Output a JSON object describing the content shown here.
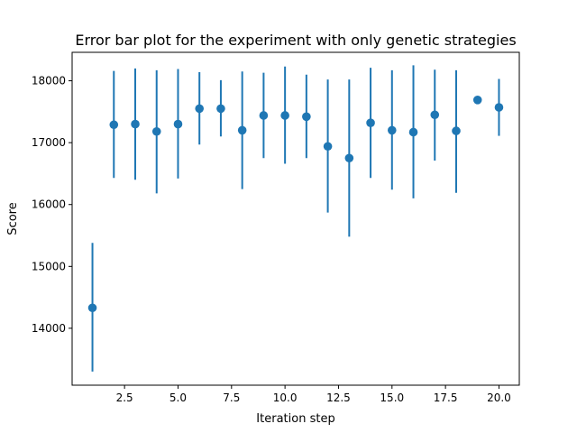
{
  "chart_data": {
    "type": "scatter",
    "title": "Error bar plot for the experiment with only genetic strategies",
    "xlabel": "Iteration step",
    "ylabel": "Score",
    "xlim": [
      0.05,
      20.95
    ],
    "ylim": [
      13080,
      18460
    ],
    "xticks": [
      2.5,
      5.0,
      7.5,
      10.0,
      12.5,
      15.0,
      17.5,
      20.0
    ],
    "xtick_labels": [
      "2.5",
      "5.0",
      "7.5",
      "10.0",
      "12.5",
      "15.0",
      "17.5",
      "20.0"
    ],
    "yticks": [
      14000,
      15000,
      16000,
      17000,
      18000
    ],
    "ytick_labels": [
      "14000",
      "15000",
      "16000",
      "17000",
      "18000"
    ],
    "grid": false,
    "color": "#1f77b4",
    "series": [
      {
        "x": [
          1,
          2,
          3,
          4,
          5,
          6,
          7,
          8,
          9,
          10,
          11,
          12,
          13,
          14,
          15,
          16,
          17,
          18,
          19,
          20
        ],
        "y": [
          14330,
          17290,
          17300,
          17180,
          17300,
          17550,
          17550,
          17200,
          17440,
          17440,
          17420,
          16940,
          16750,
          17320,
          17200,
          17170,
          17450,
          17190,
          17690,
          17570
        ],
        "yerr_low": [
          13300,
          16430,
          16400,
          16180,
          16420,
          16970,
          17100,
          16250,
          16750,
          16660,
          16750,
          15870,
          15480,
          16430,
          16240,
          16100,
          16710,
          16190,
          17690,
          17110
        ],
        "yerr_high": [
          15380,
          18160,
          18200,
          18170,
          18190,
          18140,
          18010,
          18150,
          18130,
          18230,
          18100,
          18020,
          18020,
          18210,
          18170,
          18250,
          18180,
          18170,
          17690,
          18030
        ]
      }
    ]
  }
}
